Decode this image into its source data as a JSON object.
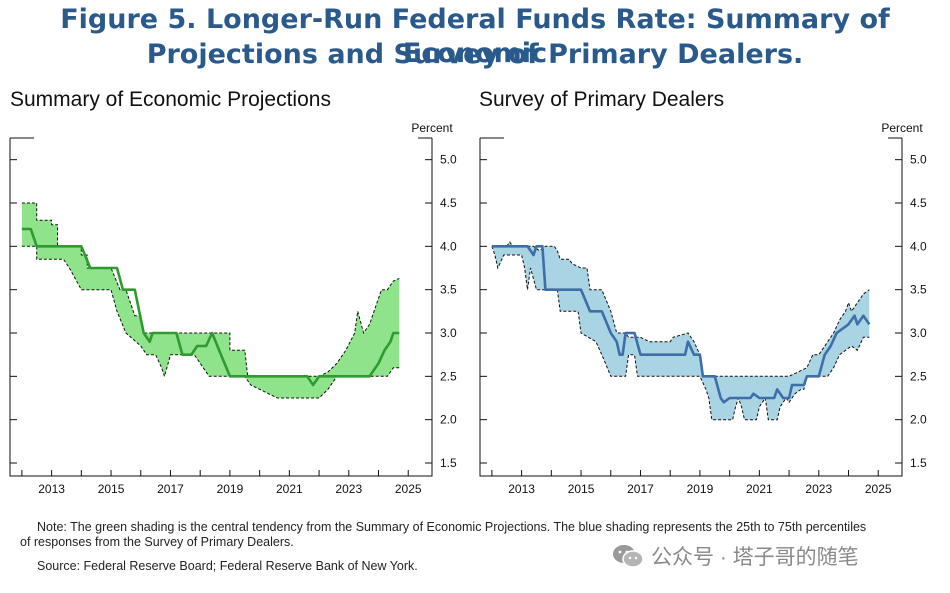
{
  "figure": {
    "title_line1": "Figure 5. Longer-Run Federal Funds Rate: Summary of Economic",
    "title_line2": "Projections and Survey of Primary Dealers.",
    "title_color": "#2a5a8c"
  },
  "notes": {
    "note": "Note: The green shading is the central tendency from the Summary of Economic Projections. The blue shading represents the 25th to 75th percentiles of responses from the Survey of Primary Dealers.",
    "source": "Source: Federal Reserve Board; Federal Reserve Bank of New York."
  },
  "watermark": {
    "text": "公众号 · 塔子哥的随笔",
    "icon": "wechat-icon"
  },
  "chart_data": [
    {
      "type": "area",
      "title": "Summary of Economic Projections",
      "ylabel": "Percent",
      "xlim": [
        2011.6,
        2025.8
      ],
      "ylim": [
        1.35,
        5.25
      ],
      "yticks": [
        1.5,
        2.0,
        2.5,
        3.0,
        3.5,
        4.0,
        4.5,
        5.0
      ],
      "ytick_labels": [
        "1.5",
        "2.0",
        "2.5",
        "3.0",
        "3.5",
        "4.0",
        "4.5",
        "5.0"
      ],
      "xticks": [
        2013,
        2015,
        2017,
        2019,
        2021,
        2023,
        2025
      ],
      "xtick_labels": [
        "2013",
        "2015",
        "2017",
        "2019",
        "2021",
        "2023",
        "2025"
      ],
      "fill_color": "#8fe38a",
      "line_color": "#2f9a2f",
      "band_style": "dashed",
      "grid": false,
      "series": [
        {
          "role": "upper",
          "points": [
            [
              2012.0,
              4.5
            ],
            [
              2012.5,
              4.5
            ],
            [
              2012.5,
              4.3
            ],
            [
              2013.0,
              4.3
            ],
            [
              2013.0,
              4.25
            ],
            [
              2013.2,
              4.25
            ],
            [
              2013.2,
              4.0
            ],
            [
              2014.0,
              4.0
            ],
            [
              2014.0,
              3.9
            ],
            [
              2014.2,
              3.9
            ],
            [
              2014.2,
              3.75
            ],
            [
              2015.0,
              3.75
            ],
            [
              2015.3,
              3.5
            ],
            [
              2015.5,
              3.5
            ],
            [
              2015.8,
              3.2
            ],
            [
              2016.0,
              3.2
            ],
            [
              2016.1,
              3.0
            ],
            [
              2019.0,
              3.0
            ],
            [
              2019.0,
              2.8
            ],
            [
              2019.5,
              2.8
            ],
            [
              2019.6,
              2.5
            ],
            [
              2022.0,
              2.5
            ],
            [
              2022.3,
              2.55
            ],
            [
              2022.6,
              2.65
            ],
            [
              2022.9,
              2.8
            ],
            [
              2023.2,
              3.0
            ],
            [
              2023.3,
              3.25
            ],
            [
              2023.5,
              3.0
            ],
            [
              2023.7,
              3.1
            ],
            [
              2023.9,
              3.3
            ],
            [
              2024.1,
              3.5
            ],
            [
              2024.3,
              3.5
            ],
            [
              2024.5,
              3.6
            ],
            [
              2024.7,
              3.63
            ]
          ]
        },
        {
          "role": "lower",
          "points": [
            [
              2012.0,
              4.0
            ],
            [
              2012.5,
              4.0
            ],
            [
              2012.5,
              3.85
            ],
            [
              2013.4,
              3.85
            ],
            [
              2013.6,
              3.75
            ],
            [
              2014.0,
              3.5
            ],
            [
              2015.0,
              3.5
            ],
            [
              2015.2,
              3.25
            ],
            [
              2015.5,
              3.0
            ],
            [
              2016.0,
              2.85
            ],
            [
              2016.2,
              2.75
            ],
            [
              2016.5,
              2.75
            ],
            [
              2016.7,
              2.6
            ],
            [
              2016.8,
              2.5
            ],
            [
              2017.0,
              2.75
            ],
            [
              2017.8,
              2.75
            ],
            [
              2018.0,
              2.65
            ],
            [
              2018.3,
              2.5
            ],
            [
              2019.5,
              2.5
            ],
            [
              2019.7,
              2.4
            ],
            [
              2020.0,
              2.35
            ],
            [
              2020.3,
              2.3
            ],
            [
              2020.6,
              2.25
            ],
            [
              2021.0,
              2.25
            ],
            [
              2022.0,
              2.25
            ],
            [
              2022.3,
              2.35
            ],
            [
              2022.6,
              2.5
            ],
            [
              2024.0,
              2.5
            ],
            [
              2024.3,
              2.5
            ],
            [
              2024.5,
              2.6
            ],
            [
              2024.7,
              2.6
            ]
          ]
        },
        {
          "role": "median",
          "points": [
            [
              2012.0,
              4.2
            ],
            [
              2012.3,
              4.2
            ],
            [
              2012.5,
              4.0
            ],
            [
              2014.0,
              4.0
            ],
            [
              2014.3,
              3.75
            ],
            [
              2015.2,
              3.75
            ],
            [
              2015.4,
              3.5
            ],
            [
              2015.8,
              3.5
            ],
            [
              2016.1,
              3.0
            ],
            [
              2016.3,
              2.9
            ],
            [
              2016.4,
              3.0
            ],
            [
              2017.2,
              3.0
            ],
            [
              2017.4,
              2.75
            ],
            [
              2017.7,
              2.75
            ],
            [
              2017.9,
              2.85
            ],
            [
              2018.2,
              2.85
            ],
            [
              2018.4,
              3.0
            ],
            [
              2018.7,
              2.75
            ],
            [
              2019.0,
              2.5
            ],
            [
              2021.6,
              2.5
            ],
            [
              2021.8,
              2.4
            ],
            [
              2022.0,
              2.5
            ],
            [
              2023.7,
              2.5
            ],
            [
              2024.0,
              2.65
            ],
            [
              2024.2,
              2.8
            ],
            [
              2024.4,
              2.9
            ],
            [
              2024.5,
              3.0
            ],
            [
              2024.7,
              3.0
            ]
          ]
        }
      ]
    },
    {
      "type": "area",
      "title": "Survey of Primary Dealers",
      "ylabel": "Percent",
      "xlim": [
        2011.6,
        2025.8
      ],
      "ylim": [
        1.35,
        5.25
      ],
      "yticks": [
        1.5,
        2.0,
        2.5,
        3.0,
        3.5,
        4.0,
        4.5,
        5.0
      ],
      "ytick_labels": [
        "1.5",
        "2.0",
        "2.5",
        "3.0",
        "3.5",
        "4.0",
        "4.5",
        "5.0"
      ],
      "xticks": [
        2013,
        2015,
        2017,
        2019,
        2021,
        2023,
        2025
      ],
      "xtick_labels": [
        "2013",
        "2015",
        "2017",
        "2019",
        "2021",
        "2023",
        "2025"
      ],
      "fill_color": "#a8d4e3",
      "line_color": "#3e6ea8",
      "band_style": "dashed",
      "grid": false,
      "series": [
        {
          "role": "upper",
          "points": [
            [
              2012.0,
              4.0
            ],
            [
              2012.5,
              4.0
            ],
            [
              2012.6,
              4.05
            ],
            [
              2012.7,
              4.0
            ],
            [
              2013.0,
              4.0
            ],
            [
              2013.4,
              4.0
            ],
            [
              2013.6,
              3.95
            ],
            [
              2013.8,
              4.0
            ],
            [
              2014.1,
              4.0
            ],
            [
              2014.2,
              3.95
            ],
            [
              2014.3,
              3.85
            ],
            [
              2014.6,
              3.85
            ],
            [
              2014.7,
              3.8
            ],
            [
              2015.0,
              3.75
            ],
            [
              2015.2,
              3.75
            ],
            [
              2015.3,
              3.5
            ],
            [
              2015.7,
              3.5
            ],
            [
              2016.0,
              3.25
            ],
            [
              2016.2,
              3.0
            ],
            [
              2016.5,
              3.0
            ],
            [
              2016.6,
              2.95
            ],
            [
              2017.0,
              2.95
            ],
            [
              2017.3,
              2.9
            ],
            [
              2018.0,
              2.9
            ],
            [
              2018.1,
              2.95
            ],
            [
              2018.6,
              3.0
            ],
            [
              2018.8,
              2.9
            ],
            [
              2019.0,
              2.75
            ],
            [
              2019.1,
              2.5
            ],
            [
              2022.0,
              2.5
            ],
            [
              2022.3,
              2.55
            ],
            [
              2022.6,
              2.6
            ],
            [
              2022.8,
              2.75
            ],
            [
              2023.0,
              2.75
            ],
            [
              2023.3,
              2.9
            ],
            [
              2023.5,
              3.0
            ],
            [
              2023.7,
              3.15
            ],
            [
              2023.9,
              3.25
            ],
            [
              2024.0,
              3.35
            ],
            [
              2024.1,
              3.25
            ],
            [
              2024.3,
              3.35
            ],
            [
              2024.5,
              3.45
            ],
            [
              2024.7,
              3.5
            ]
          ]
        },
        {
          "role": "lower",
          "points": [
            [
              2012.0,
              4.0
            ],
            [
              2012.1,
              3.9
            ],
            [
              2012.2,
              3.75
            ],
            [
              2012.4,
              3.9
            ],
            [
              2012.5,
              3.9
            ],
            [
              2013.0,
              3.9
            ],
            [
              2013.1,
              3.75
            ],
            [
              2013.2,
              3.5
            ],
            [
              2013.3,
              3.75
            ],
            [
              2013.5,
              3.5
            ],
            [
              2014.0,
              3.5
            ],
            [
              2014.2,
              3.5
            ],
            [
              2014.3,
              3.25
            ],
            [
              2014.9,
              3.25
            ],
            [
              2015.0,
              3.0
            ],
            [
              2015.5,
              2.9
            ],
            [
              2015.7,
              2.75
            ],
            [
              2016.0,
              2.5
            ],
            [
              2016.5,
              2.5
            ],
            [
              2016.6,
              2.75
            ],
            [
              2016.8,
              2.75
            ],
            [
              2016.9,
              2.5
            ],
            [
              2019.0,
              2.5
            ],
            [
              2019.2,
              2.35
            ],
            [
              2019.3,
              2.25
            ],
            [
              2019.4,
              2.0
            ],
            [
              2020.1,
              2.0
            ],
            [
              2020.2,
              2.15
            ],
            [
              2020.3,
              2.25
            ],
            [
              2020.4,
              2.15
            ],
            [
              2020.5,
              2.0
            ],
            [
              2020.9,
              2.0
            ],
            [
              2021.0,
              2.15
            ],
            [
              2021.2,
              2.25
            ],
            [
              2021.3,
              2.0
            ],
            [
              2021.6,
              2.0
            ],
            [
              2021.7,
              2.15
            ],
            [
              2021.9,
              2.25
            ],
            [
              2022.0,
              2.2
            ],
            [
              2022.2,
              2.3
            ],
            [
              2022.4,
              2.35
            ],
            [
              2022.5,
              2.35
            ],
            [
              2022.6,
              2.5
            ],
            [
              2023.3,
              2.5
            ],
            [
              2023.5,
              2.6
            ],
            [
              2023.7,
              2.75
            ],
            [
              2023.9,
              2.8
            ],
            [
              2024.1,
              2.85
            ],
            [
              2024.3,
              2.8
            ],
            [
              2024.5,
              2.95
            ],
            [
              2024.7,
              2.95
            ]
          ]
        },
        {
          "role": "median",
          "points": [
            [
              2012.0,
              4.0
            ],
            [
              2013.2,
              4.0
            ],
            [
              2013.4,
              3.9
            ],
            [
              2013.5,
              4.0
            ],
            [
              2013.7,
              4.0
            ],
            [
              2013.8,
              3.5
            ],
            [
              2015.0,
              3.5
            ],
            [
              2015.3,
              3.25
            ],
            [
              2015.7,
              3.25
            ],
            [
              2016.0,
              3.0
            ],
            [
              2016.2,
              2.9
            ],
            [
              2016.3,
              2.75
            ],
            [
              2016.4,
              2.75
            ],
            [
              2016.5,
              3.0
            ],
            [
              2016.8,
              3.0
            ],
            [
              2017.0,
              2.75
            ],
            [
              2018.5,
              2.75
            ],
            [
              2018.6,
              2.9
            ],
            [
              2018.8,
              2.75
            ],
            [
              2019.0,
              2.75
            ],
            [
              2019.1,
              2.5
            ],
            [
              2019.5,
              2.5
            ],
            [
              2019.7,
              2.25
            ],
            [
              2019.8,
              2.2
            ],
            [
              2020.0,
              2.25
            ],
            [
              2020.7,
              2.25
            ],
            [
              2020.8,
              2.3
            ],
            [
              2021.0,
              2.25
            ],
            [
              2021.5,
              2.25
            ],
            [
              2021.6,
              2.35
            ],
            [
              2021.8,
              2.25
            ],
            [
              2022.0,
              2.25
            ],
            [
              2022.1,
              2.4
            ],
            [
              2022.2,
              2.4
            ],
            [
              2022.5,
              2.4
            ],
            [
              2022.6,
              2.5
            ],
            [
              2023.0,
              2.5
            ],
            [
              2023.2,
              2.75
            ],
            [
              2023.4,
              2.85
            ],
            [
              2023.6,
              3.0
            ],
            [
              2023.8,
              3.05
            ],
            [
              2024.0,
              3.1
            ],
            [
              2024.2,
              3.2
            ],
            [
              2024.3,
              3.1
            ],
            [
              2024.5,
              3.2
            ],
            [
              2024.7,
              3.1
            ]
          ]
        }
      ]
    }
  ]
}
